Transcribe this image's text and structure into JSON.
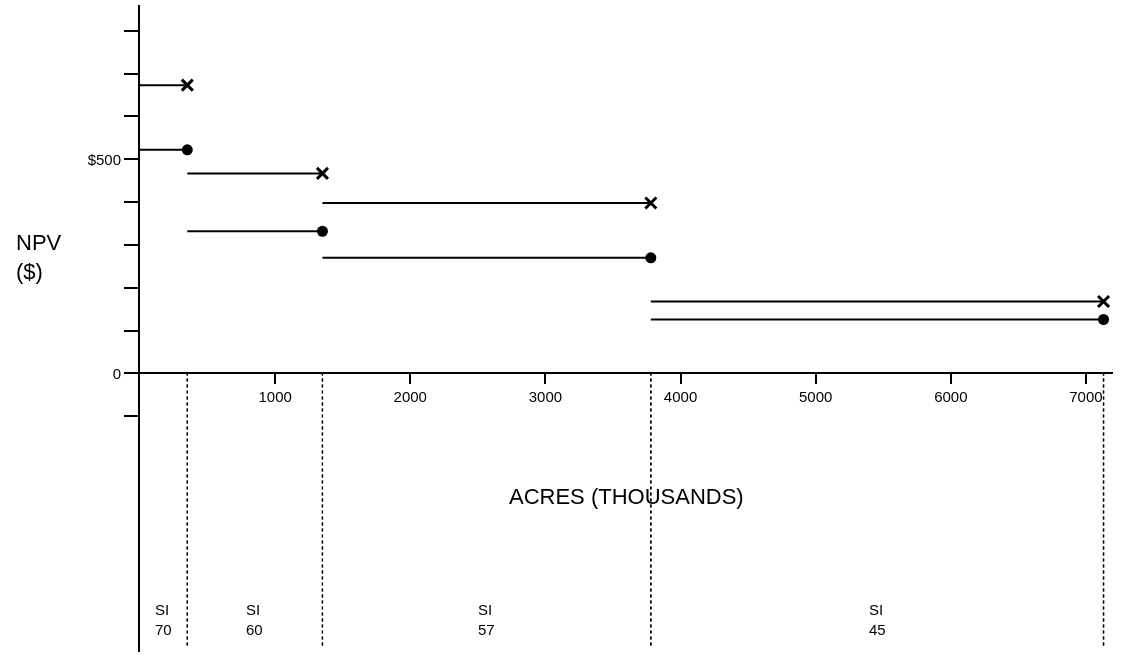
{
  "chart_data": {
    "type": "line",
    "xlabel": "ACRES (THOUSANDS)",
    "ylabel": "NPV\n($)",
    "xlim": [
      0,
      7200
    ],
    "ylim": [
      -650,
      860
    ],
    "xticks": [
      1000,
      2000,
      3000,
      4000,
      5000,
      6000,
      7000
    ],
    "yticks": [
      {
        "value": -100,
        "label": null
      },
      0,
      {
        "value": 100,
        "label": null
      },
      {
        "value": 200,
        "label": null
      },
      {
        "value": 300,
        "label": null
      },
      {
        "value": 400,
        "label": null
      },
      {
        "value": 500,
        "label": "$500"
      },
      {
        "value": 600,
        "label": null
      },
      {
        "value": 700,
        "label": null
      },
      {
        "value": 800,
        "label": null
      }
    ],
    "series": [
      {
        "color": "#000000",
        "marker": "cross",
        "x": [
          0,
          350,
          350,
          1350,
          1350,
          3780,
          3780,
          7130
        ],
        "values": [
          673,
          673,
          467,
          467,
          398,
          398,
          168,
          168
        ]
      },
      {
        "color": "#000000",
        "marker": "circle",
        "x": [
          0,
          350,
          350,
          1350,
          1350,
          3780,
          3780,
          7130
        ],
        "values": [
          522,
          522,
          332,
          332,
          270,
          270,
          126,
          126
        ]
      }
    ],
    "ref_lines": [
      {
        "axis": "x",
        "value": 350,
        "line_style": "dotted"
      },
      {
        "axis": "x",
        "value": 1350,
        "line_style": "dotted"
      },
      {
        "axis": "x",
        "value": 3780,
        "line_style": "dotted"
      },
      {
        "axis": "x",
        "value": 7130,
        "line_style": "dotted"
      }
    ],
    "annotations": [
      "SI\n70",
      "SI\n60",
      "SI\n57",
      "SI\n45"
    ]
  }
}
